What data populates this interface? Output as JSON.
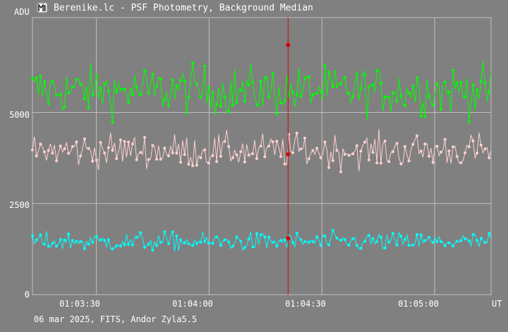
{
  "window": {
    "title": "Berenike.lc - PSF Photometry, Background Median"
  },
  "footer": {
    "text": "06 mar 2025, FITS, Andor Zyla5.5"
  },
  "colors": {
    "background": "#808080",
    "grid": "#c0c0c0",
    "cursor": "#dd0000",
    "series_green": "#00ff00",
    "series_pink": "#ffd0d0",
    "series_cyan": "#00ffff"
  },
  "chart_data": {
    "type": "line",
    "ylabel": "ADU",
    "xlabel": "UT",
    "ylim": [
      0,
      7600
    ],
    "xlim": [
      "01:03:13",
      "01:05:15"
    ],
    "y_ticks": [
      "0",
      "2500",
      "5000"
    ],
    "x_ticks": [
      "01:03:30",
      "01:04:00",
      "01:04:30",
      "01:05:00"
    ],
    "grid": true,
    "cursor_time": "01:04:21",
    "series": [
      {
        "color": "#00ff00",
        "mean": 5600,
        "spread": 600,
        "samples": 230
      },
      {
        "color": "#ffd0d0",
        "mean": 3950,
        "spread": 420,
        "samples": 230
      },
      {
        "color": "#00ffff",
        "mean": 1450,
        "spread": 230,
        "samples": 230
      }
    ],
    "cursor_values": [
      6850,
      3850,
      1550
    ]
  }
}
